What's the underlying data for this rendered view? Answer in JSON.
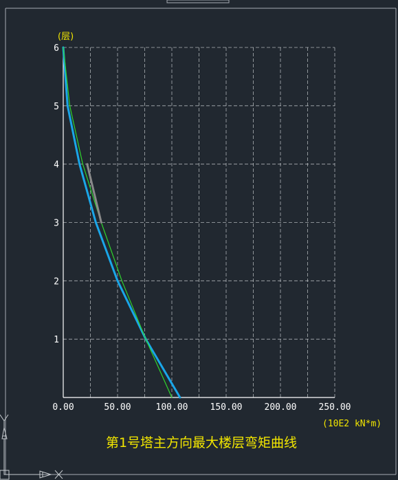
{
  "canvas": {
    "background": "#212830",
    "frame_color": "#a8adb3"
  },
  "chart_data": {
    "type": "line",
    "title": "第1号塔主方向最大楼层弯矩曲线",
    "ylabel": "(层)",
    "xlabel": "(10E2 kN*m)",
    "xlim": [
      0,
      250
    ],
    "ylim": [
      0,
      6
    ],
    "x_ticks": [
      "0.00",
      "50.00",
      "100.00",
      "150.00",
      "200.00",
      "250.00"
    ],
    "y_ticks": [
      "1",
      "2",
      "3",
      "4",
      "5",
      "6"
    ],
    "grid": true,
    "colors": {
      "axis": "#ffffff",
      "grid": "#d0d4d8",
      "tick_label": "#ffffff",
      "title": "#f2e600",
      "units": "#f2e600"
    },
    "series": [
      {
        "color": "#1aa6e8",
        "points": [
          [
            0,
            6
          ],
          [
            4,
            5
          ],
          [
            15,
            4
          ],
          [
            30,
            3
          ],
          [
            50,
            2
          ],
          [
            76,
            1
          ],
          [
            107.5,
            0
          ]
        ]
      },
      {
        "color": "#2ed62e",
        "points": [
          [
            0,
            6
          ],
          [
            6,
            5
          ],
          [
            18,
            4
          ],
          [
            35,
            3
          ],
          [
            54,
            2
          ],
          [
            76,
            1
          ],
          [
            100,
            0
          ]
        ]
      },
      {
        "color": "#8a8a8a",
        "points": [
          [
            22,
            4
          ],
          [
            35,
            3
          ]
        ]
      }
    ]
  }
}
